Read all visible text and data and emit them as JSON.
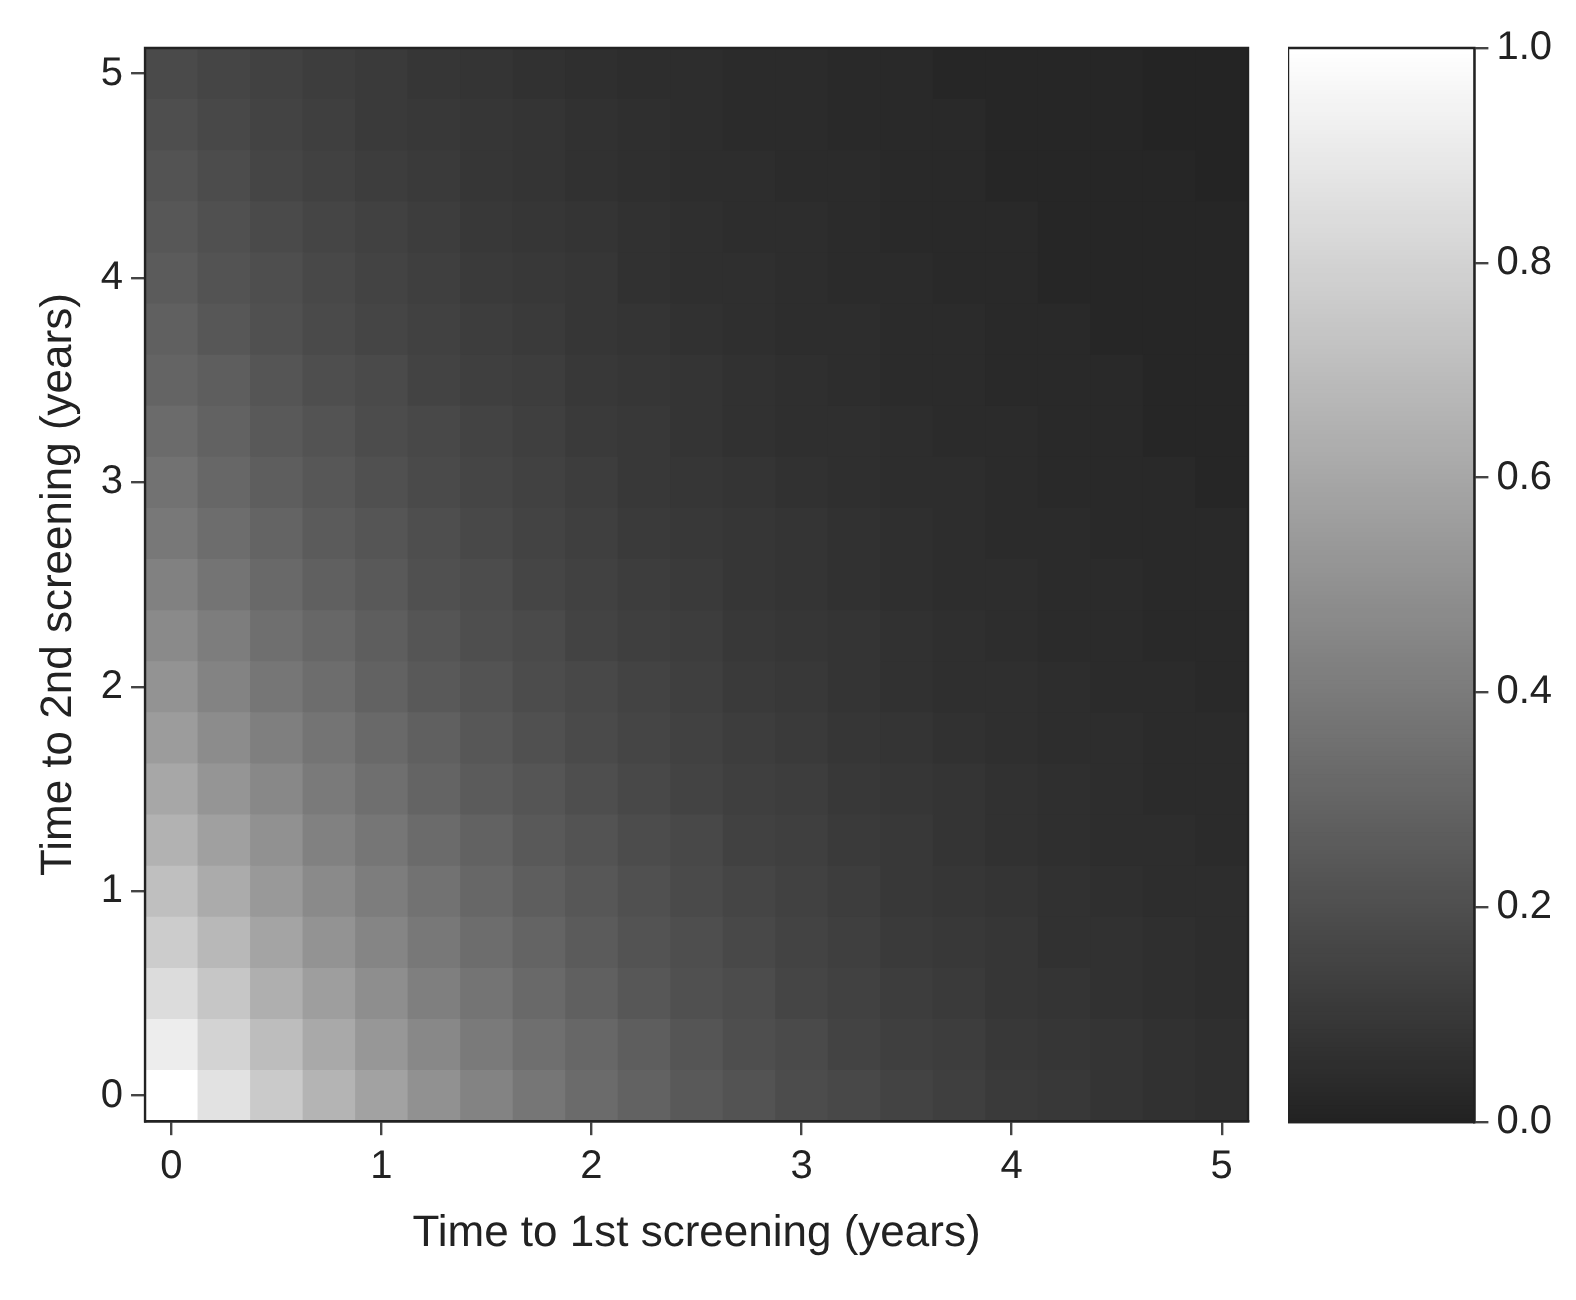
{
  "chart_data": {
    "type": "heatmap",
    "xlabel": "Time to 1st screening (years)",
    "ylabel": "Time to 2nd screening (years)",
    "categories": [
      "0",
      null,
      null,
      null,
      "1",
      null,
      null,
      null,
      "2",
      null,
      null,
      null,
      "3",
      null,
      null,
      null,
      "4",
      null,
      null,
      null,
      "5"
    ],
    "y_categories": [
      "5",
      null,
      null,
      null,
      "4",
      null,
      null,
      null,
      "3",
      null,
      null,
      null,
      "2",
      null,
      null,
      null,
      "1",
      null,
      null,
      null,
      "0"
    ],
    "clim": [
      0,
      1
    ],
    "cticks": [
      {
        "value": 0,
        "label": "0.0"
      },
      {
        "value": 0.2,
        "label": "0.2"
      },
      {
        "value": 0.4,
        "label": "0.4"
      },
      {
        "value": 0.6,
        "label": "0.6"
      },
      {
        "value": 0.8,
        "label": "0.8"
      },
      {
        "value": 1,
        "label": "1.0"
      }
    ],
    "cells": [
      [
        0.18,
        0.16,
        0.14,
        0.12,
        0.11,
        0.09,
        0.08,
        0.07,
        0.06,
        0.05,
        0.05,
        0.04,
        0.04,
        0.03,
        0.03,
        0.02,
        0.02,
        0.02,
        0.02,
        0.01,
        0.01
      ],
      [
        0.2,
        0.17,
        0.15,
        0.13,
        0.11,
        0.1,
        0.09,
        0.08,
        0.07,
        0.06,
        0.05,
        0.04,
        0.04,
        0.03,
        0.03,
        0.03,
        0.02,
        0.02,
        0.02,
        0.01,
        0.01
      ],
      [
        0.22,
        0.19,
        0.16,
        0.14,
        0.12,
        0.11,
        0.09,
        0.08,
        0.07,
        0.06,
        0.05,
        0.05,
        0.04,
        0.04,
        0.03,
        0.03,
        0.02,
        0.02,
        0.02,
        0.02,
        0.01
      ],
      [
        0.24,
        0.21,
        0.18,
        0.16,
        0.14,
        0.12,
        0.1,
        0.09,
        0.08,
        0.07,
        0.06,
        0.05,
        0.05,
        0.04,
        0.03,
        0.03,
        0.03,
        0.02,
        0.02,
        0.02,
        0.02
      ],
      [
        0.26,
        0.22,
        0.2,
        0.17,
        0.15,
        0.13,
        0.11,
        0.1,
        0.09,
        0.07,
        0.06,
        0.06,
        0.05,
        0.04,
        0.04,
        0.03,
        0.03,
        0.02,
        0.02,
        0.02,
        0.02
      ],
      [
        0.28,
        0.24,
        0.21,
        0.18,
        0.16,
        0.14,
        0.12,
        0.11,
        0.09,
        0.08,
        0.07,
        0.06,
        0.05,
        0.05,
        0.04,
        0.04,
        0.03,
        0.03,
        0.02,
        0.02,
        0.02
      ],
      [
        0.3,
        0.27,
        0.23,
        0.2,
        0.18,
        0.15,
        0.13,
        0.12,
        0.1,
        0.09,
        0.08,
        0.07,
        0.06,
        0.05,
        0.04,
        0.04,
        0.03,
        0.03,
        0.03,
        0.02,
        0.02
      ],
      [
        0.33,
        0.29,
        0.25,
        0.22,
        0.19,
        0.17,
        0.15,
        0.13,
        0.11,
        0.1,
        0.08,
        0.07,
        0.06,
        0.06,
        0.05,
        0.04,
        0.04,
        0.03,
        0.03,
        0.02,
        0.02
      ],
      [
        0.36,
        0.31,
        0.27,
        0.24,
        0.21,
        0.18,
        0.16,
        0.14,
        0.12,
        0.1,
        0.09,
        0.08,
        0.07,
        0.06,
        0.05,
        0.05,
        0.04,
        0.03,
        0.03,
        0.03,
        0.02
      ],
      [
        0.39,
        0.34,
        0.3,
        0.26,
        0.23,
        0.2,
        0.17,
        0.15,
        0.13,
        0.11,
        0.1,
        0.09,
        0.08,
        0.07,
        0.06,
        0.05,
        0.04,
        0.04,
        0.03,
        0.03,
        0.03
      ],
      [
        0.43,
        0.37,
        0.32,
        0.28,
        0.25,
        0.21,
        0.19,
        0.16,
        0.14,
        0.12,
        0.11,
        0.09,
        0.08,
        0.07,
        0.06,
        0.05,
        0.05,
        0.04,
        0.04,
        0.03,
        0.03
      ],
      [
        0.47,
        0.41,
        0.35,
        0.31,
        0.27,
        0.23,
        0.2,
        0.18,
        0.15,
        0.13,
        0.12,
        0.1,
        0.09,
        0.08,
        0.07,
        0.06,
        0.05,
        0.04,
        0.04,
        0.03,
        0.03
      ],
      [
        0.51,
        0.44,
        0.38,
        0.34,
        0.29,
        0.25,
        0.22,
        0.19,
        0.17,
        0.15,
        0.13,
        0.11,
        0.1,
        0.08,
        0.07,
        0.06,
        0.06,
        0.05,
        0.04,
        0.04,
        0.03
      ],
      [
        0.55,
        0.48,
        0.42,
        0.37,
        0.32,
        0.28,
        0.24,
        0.21,
        0.18,
        0.16,
        0.14,
        0.12,
        0.11,
        0.09,
        0.08,
        0.07,
        0.06,
        0.05,
        0.05,
        0.04,
        0.04
      ],
      [
        0.6,
        0.52,
        0.46,
        0.4,
        0.35,
        0.3,
        0.26,
        0.23,
        0.2,
        0.17,
        0.15,
        0.13,
        0.12,
        0.1,
        0.09,
        0.08,
        0.07,
        0.06,
        0.05,
        0.04,
        0.04
      ],
      [
        0.65,
        0.57,
        0.5,
        0.43,
        0.38,
        0.33,
        0.29,
        0.25,
        0.22,
        0.19,
        0.17,
        0.14,
        0.13,
        0.11,
        0.1,
        0.08,
        0.07,
        0.06,
        0.05,
        0.05,
        0.04
      ],
      [
        0.71,
        0.62,
        0.54,
        0.47,
        0.41,
        0.36,
        0.31,
        0.27,
        0.24,
        0.21,
        0.18,
        0.16,
        0.14,
        0.12,
        0.1,
        0.09,
        0.08,
        0.07,
        0.06,
        0.05,
        0.05
      ],
      [
        0.77,
        0.68,
        0.59,
        0.51,
        0.45,
        0.39,
        0.34,
        0.3,
        0.26,
        0.22,
        0.2,
        0.17,
        0.15,
        0.13,
        0.11,
        0.1,
        0.09,
        0.07,
        0.07,
        0.06,
        0.05
      ],
      [
        0.84,
        0.74,
        0.64,
        0.56,
        0.49,
        0.42,
        0.37,
        0.32,
        0.28,
        0.24,
        0.21,
        0.19,
        0.16,
        0.14,
        0.12,
        0.11,
        0.09,
        0.08,
        0.07,
        0.06,
        0.05
      ],
      [
        0.92,
        0.8,
        0.7,
        0.61,
        0.53,
        0.46,
        0.4,
        0.35,
        0.31,
        0.27,
        0.23,
        0.2,
        0.18,
        0.15,
        0.13,
        0.12,
        0.1,
        0.09,
        0.08,
        0.07,
        0.06
      ],
      [
        1.0,
        0.87,
        0.76,
        0.66,
        0.58,
        0.5,
        0.44,
        0.38,
        0.33,
        0.29,
        0.25,
        0.22,
        0.19,
        0.17,
        0.15,
        0.13,
        0.11,
        0.1,
        0.08,
        0.07,
        0.06
      ]
    ]
  }
}
